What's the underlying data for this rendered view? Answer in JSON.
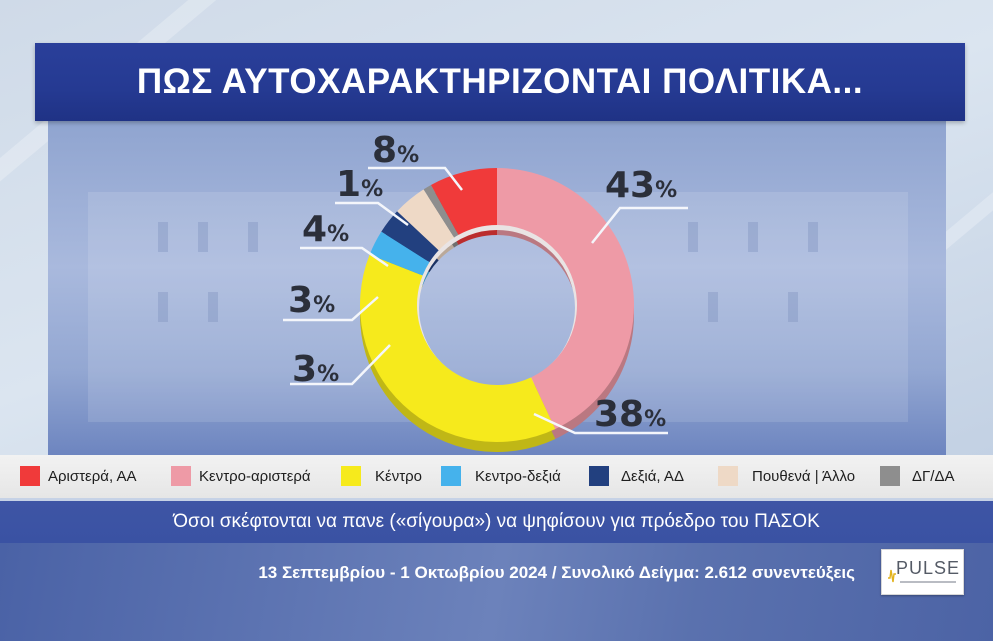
{
  "title": "ΠΩΣ ΑΥΤΟΧΑΡΑΚΤΗΡΙΖΟΝΤΑΙ ΠΟΛΙΤΙΚΑ...",
  "note": "Όσοι σκέφτονται να πανε («σίγουρα») να ψηφίσουν για πρόεδρο του ΠΑΣΟΚ",
  "source": "13 Σεπτεμβρίου - 1 Οκτωβρίου 2024 / Συνολικό Δείγμα: 2.612 συνεντεύξεις",
  "logo": {
    "text": "PULSE",
    "icon": "pulse-logo-icon"
  },
  "percent_symbol": "%",
  "legend": [
    {
      "label": "Αριστερά, ΑΑ",
      "color": "#f03a3a"
    },
    {
      "label": "Κεντρο-αριστερά",
      "color": "#ee9aa6"
    },
    {
      "label": "Κέντρο",
      "color": "#f6ea1c"
    },
    {
      "label": "Κεντρο-δεξιά",
      "color": "#45b2ec"
    },
    {
      "label": "Δεξιά, ΑΔ",
      "color": "#22407f"
    },
    {
      "label": "Πουθενά | Άλλο",
      "color": "#eed9c6"
    },
    {
      "label": "ΔΓ/ΔΑ",
      "color": "#8e8e8e"
    }
  ],
  "labels": {
    "kentro_aristera": "43",
    "kentro": "38",
    "kentro_dexia": "3",
    "dexia": "3",
    "pouthena": "4",
    "dg_da": "1",
    "aristera": "8"
  },
  "chart_data": {
    "type": "pie",
    "subtype": "donut",
    "title": "ΠΩΣ ΑΥΤΟΧΑΡΑΚΤΗΡΙΖΟΝΤΑΙ ΠΟΛΙΤΙΚΑ...",
    "subtitle": "Όσοι σκέφτονται να πανε («σίγουρα») να ψηφίσουν για πρόεδρο του ΠΑΣΟΚ",
    "categories": [
      "Κεντρο-αριστερά",
      "Κέντρο",
      "Κεντρο-δεξιά",
      "Δεξιά, ΑΔ",
      "Πουθενά | Άλλο",
      "ΔΓ/ΔΑ",
      "Αριστερά, ΑΑ"
    ],
    "values": [
      43,
      38,
      3,
      3,
      4,
      1,
      8
    ],
    "colors": [
      "#ee9aa6",
      "#f6ea1c",
      "#45b2ec",
      "#22407f",
      "#eed9c6",
      "#8e8e8e",
      "#f03a3a"
    ],
    "unit": "%",
    "legend_position": "bottom",
    "start_angle": "12 o'clock, clockwise"
  }
}
